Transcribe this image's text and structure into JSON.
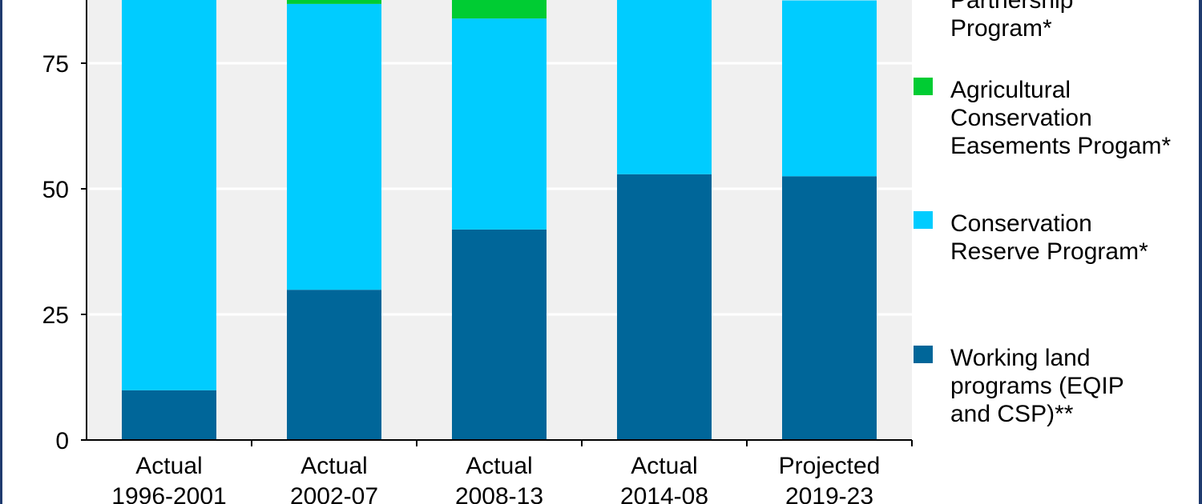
{
  "chart_data": {
    "type": "bar",
    "stacked": true,
    "title": "",
    "xlabel": "",
    "ylabel": "",
    "ylim": [
      0,
      87.6
    ],
    "yticks": [
      0,
      25,
      50,
      75
    ],
    "grid": true,
    "legend_placement": "right",
    "categories": [
      [
        "Actual",
        "1996-2001"
      ],
      [
        "Actual",
        "2002-07"
      ],
      [
        "Actual",
        "2008-13"
      ],
      [
        "Actual",
        "2014-08"
      ],
      [
        "Projected",
        "2019-23"
      ]
    ],
    "series": [
      {
        "name": "Working land programs (EQIP and CSP)**",
        "color": "#006699",
        "values": [
          9.9,
          29.9,
          41.9,
          52.9,
          52.5
        ]
      },
      {
        "name": "Conservation Reserve Program*",
        "color": "#00ccff",
        "values": [
          78,
          56.9,
          42.0,
          35,
          35
        ]
      },
      {
        "name": "Agricultural Conservation Easements Progam*",
        "color": "#00cc33",
        "values": [
          0,
          3,
          5,
          0,
          0
        ]
      }
    ],
    "legend": [
      {
        "text": "Partnership\nProgram*",
        "color": null
      },
      {
        "text": "Agricultural\nConservation\nEasements Progam*",
        "color": "#00cc33"
      },
      {
        "text": "Conservation\nReserve Program*",
        "color": "#00ccff"
      },
      {
        "text": "Working land\nprograms (EQIP\nand CSP)**",
        "color": "#006699"
      }
    ]
  }
}
